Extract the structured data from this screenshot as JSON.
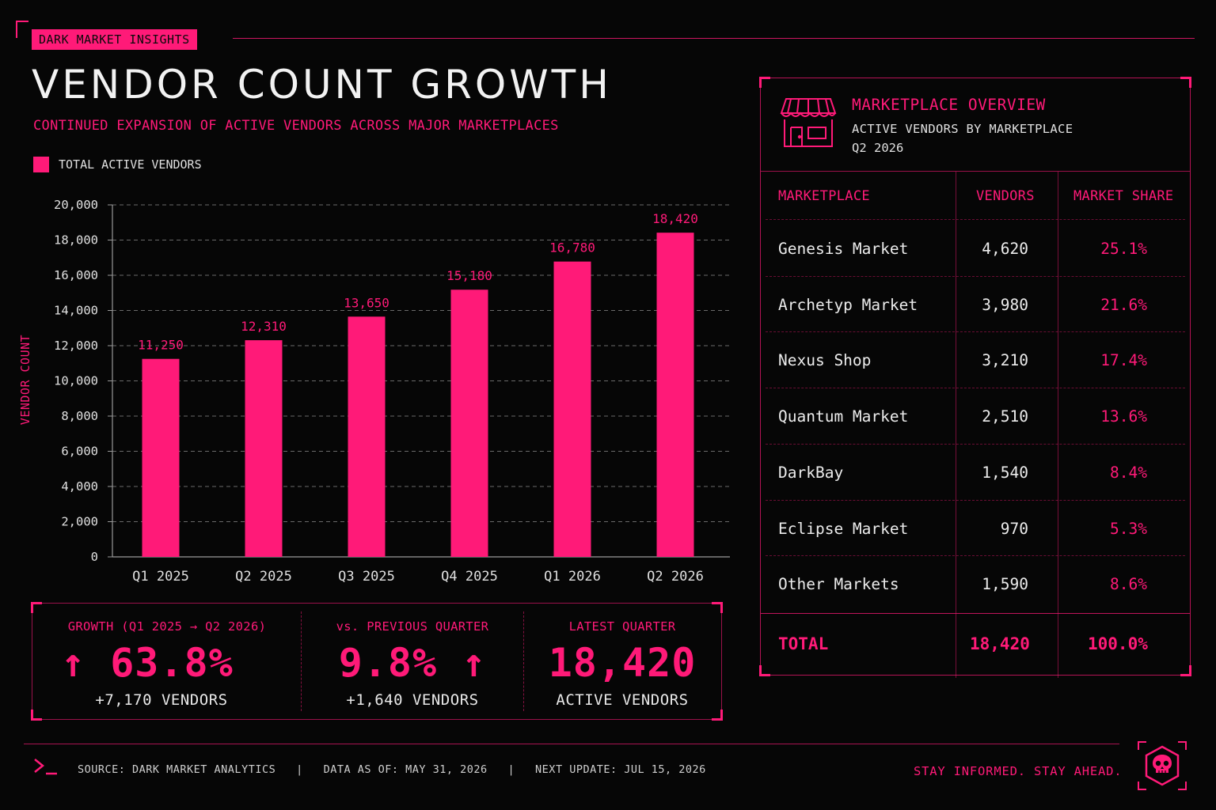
{
  "header": {
    "tag": "DARK MARKET INSIGHTS",
    "title": "VENDOR COUNT GROWTH",
    "subtitle": "CONTINUED EXPANSION OF ACTIVE VENDORS ACROSS MAJOR MARKETPLACES",
    "legend_label": "TOTAL ACTIVE VENDORS"
  },
  "chart_data": {
    "type": "bar",
    "categories": [
      "Q1 2025",
      "Q2 2025",
      "Q3 2025",
      "Q4 2025",
      "Q1 2026",
      "Q2 2026"
    ],
    "series": [
      {
        "name": "TOTAL ACTIVE VENDORS",
        "values": [
          11250,
          12310,
          13650,
          15180,
          16780,
          18420
        ]
      }
    ],
    "data_labels": [
      "11,250",
      "12,310",
      "13,650",
      "15,180",
      "16,780",
      "18,420"
    ],
    "ylabel": "VENDOR COUNT",
    "ylim": [
      0,
      20000
    ],
    "yticks": [
      0,
      2000,
      4000,
      6000,
      8000,
      10000,
      12000,
      14000,
      16000,
      18000,
      20000
    ],
    "ytick_labels": [
      "0",
      "2,000",
      "4,000",
      "6,000",
      "8,000",
      "10,000",
      "12,000",
      "14,000",
      "16,000",
      "18,000",
      "20,000"
    ],
    "grid": true,
    "bar_color": "#ff1a78"
  },
  "stats": [
    {
      "label": "GROWTH (Q1 2025 → Q2 2026)",
      "value": "↑ 63.8%",
      "sub": "+7,170 VENDORS"
    },
    {
      "label": "vs. PREVIOUS QUARTER",
      "value": "9.8% ↑",
      "sub": "+1,640 VENDORS"
    },
    {
      "label": "LATEST QUARTER",
      "value": "18,420",
      "sub": "ACTIVE VENDORS"
    }
  ],
  "panel": {
    "icon": "storefront-icon",
    "title": "MARKETPLACE OVERVIEW",
    "subtitle": "ACTIVE VENDORS BY MARKETPLACE",
    "period": "Q2 2026",
    "columns": [
      "MARKETPLACE",
      "VENDORS",
      "MARKET SHARE"
    ],
    "rows": [
      {
        "name": "Genesis Market",
        "vendors": "4,620",
        "share": "25.1%"
      },
      {
        "name": "Archetyp Market",
        "vendors": "3,980",
        "share": "21.6%"
      },
      {
        "name": "Nexus Shop",
        "vendors": "3,210",
        "share": "17.4%"
      },
      {
        "name": "Quantum Market",
        "vendors": "2,510",
        "share": "13.6%"
      },
      {
        "name": "DarkBay",
        "vendors": "1,540",
        "share": "8.4%"
      },
      {
        "name": "Eclipse Market",
        "vendors": "970",
        "share": "5.3%"
      },
      {
        "name": "Other Markets",
        "vendors": "1,590",
        "share": "8.6%"
      }
    ],
    "total": {
      "name": "TOTAL",
      "vendors": "18,420",
      "share": "100.0%"
    }
  },
  "footer": {
    "source": "SOURCE: DARK MARKET ANALYTICS   |   DATA AS OF: MAY 31, 2026   |   NEXT UPDATE: JUL 15, 2026",
    "tagline": "STAY INFORMED. STAY AHEAD.",
    "prompt_icon": "terminal-prompt-icon",
    "badge_icon": "skull-icon"
  },
  "colors": {
    "accent": "#ff1a78",
    "background": "#060606"
  }
}
